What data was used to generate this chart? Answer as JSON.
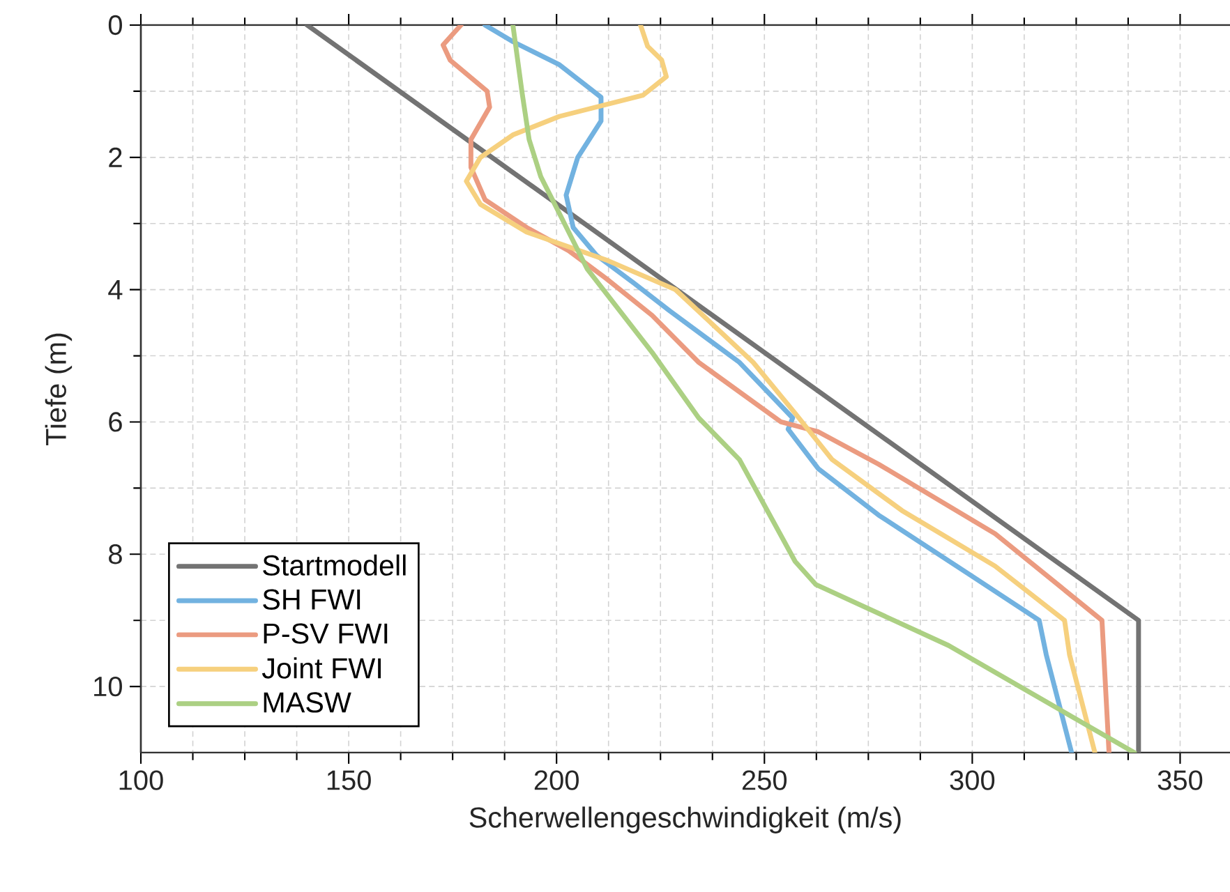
{
  "chart_data": {
    "type": "line",
    "xlabel": "Scherwellengeschwindigkeit (m/s)",
    "ylabel": "Tiefe (m)",
    "xlim": [
      100,
      362
    ],
    "xticks": [
      100,
      150,
      200,
      250,
      300,
      350
    ],
    "ylim": [
      11,
      0
    ],
    "yticks": [
      0,
      2,
      4,
      6,
      8,
      10
    ],
    "grid": true,
    "legend": "bottom left",
    "marker": "none",
    "line_style": "solid",
    "series": [
      {
        "name": "Startmodell",
        "color": "#737373",
        "x": [
          140,
          340,
          340
        ],
        "values": [
          0,
          9,
          11
        ]
      },
      {
        "name": "SH FWI",
        "color": "#72b2e0",
        "x": [
          182.8,
          189.5,
          200.7,
          210.7,
          210.7,
          205.1,
          202.3,
          204,
          209.6,
          218.6,
          227.2,
          244,
          256.8,
          255.7,
          263,
          277.5,
          299.9,
          316.1,
          317.8,
          323.9
        ],
        "values": [
          0,
          0.25,
          0.6,
          1.09,
          1.45,
          2.0,
          2.57,
          3.06,
          3.48,
          3.9,
          4.32,
          5.1,
          5.94,
          6.11,
          6.71,
          7.41,
          8.33,
          9.0,
          9.52,
          11
        ]
      },
      {
        "name": "P-SV FWI",
        "color": "#eb9b80",
        "x": [
          177,
          172.7,
          174.4,
          183.3,
          183.9,
          179.4,
          179.4,
          182.8,
          192.8,
          202.9,
          211.9,
          223,
          234.2,
          254,
          263,
          277.5,
          305.5,
          331.2,
          332.9
        ],
        "values": [
          0,
          0.3,
          0.53,
          1.0,
          1.24,
          1.73,
          2.15,
          2.64,
          3.06,
          3.41,
          3.83,
          4.39,
          5.1,
          6.0,
          6.15,
          6.64,
          7.69,
          9.0,
          11
        ]
      },
      {
        "name": "Joint FWI",
        "color": "#f6d07e",
        "x": [
          220.2,
          221.9,
          225.3,
          226.4,
          220.8,
          200.7,
          189.5,
          181.7,
          178.3,
          181.7,
          192.8,
          211.9,
          228.6,
          247.3,
          257.4,
          266.3,
          283.1,
          305.5,
          322.2,
          323.4,
          329.5
        ],
        "values": [
          0,
          0.32,
          0.53,
          0.78,
          1.06,
          1.38,
          1.66,
          2.0,
          2.36,
          2.71,
          3.13,
          3.55,
          4.0,
          5.1,
          5.87,
          6.57,
          7.34,
          8.18,
          9.0,
          9.52,
          11
        ]
      },
      {
        "name": "MASW",
        "color": "#acd083",
        "x": [
          189.5,
          191.7,
          193.4,
          196.2,
          200.7,
          207.4,
          223,
          234.2,
          244,
          257.4,
          262.4,
          294.3,
          339
        ],
        "values": [
          0,
          1.02,
          1.73,
          2.29,
          2.85,
          3.69,
          4.95,
          5.94,
          6.57,
          8.11,
          8.46,
          9.38,
          11
        ]
      }
    ]
  }
}
